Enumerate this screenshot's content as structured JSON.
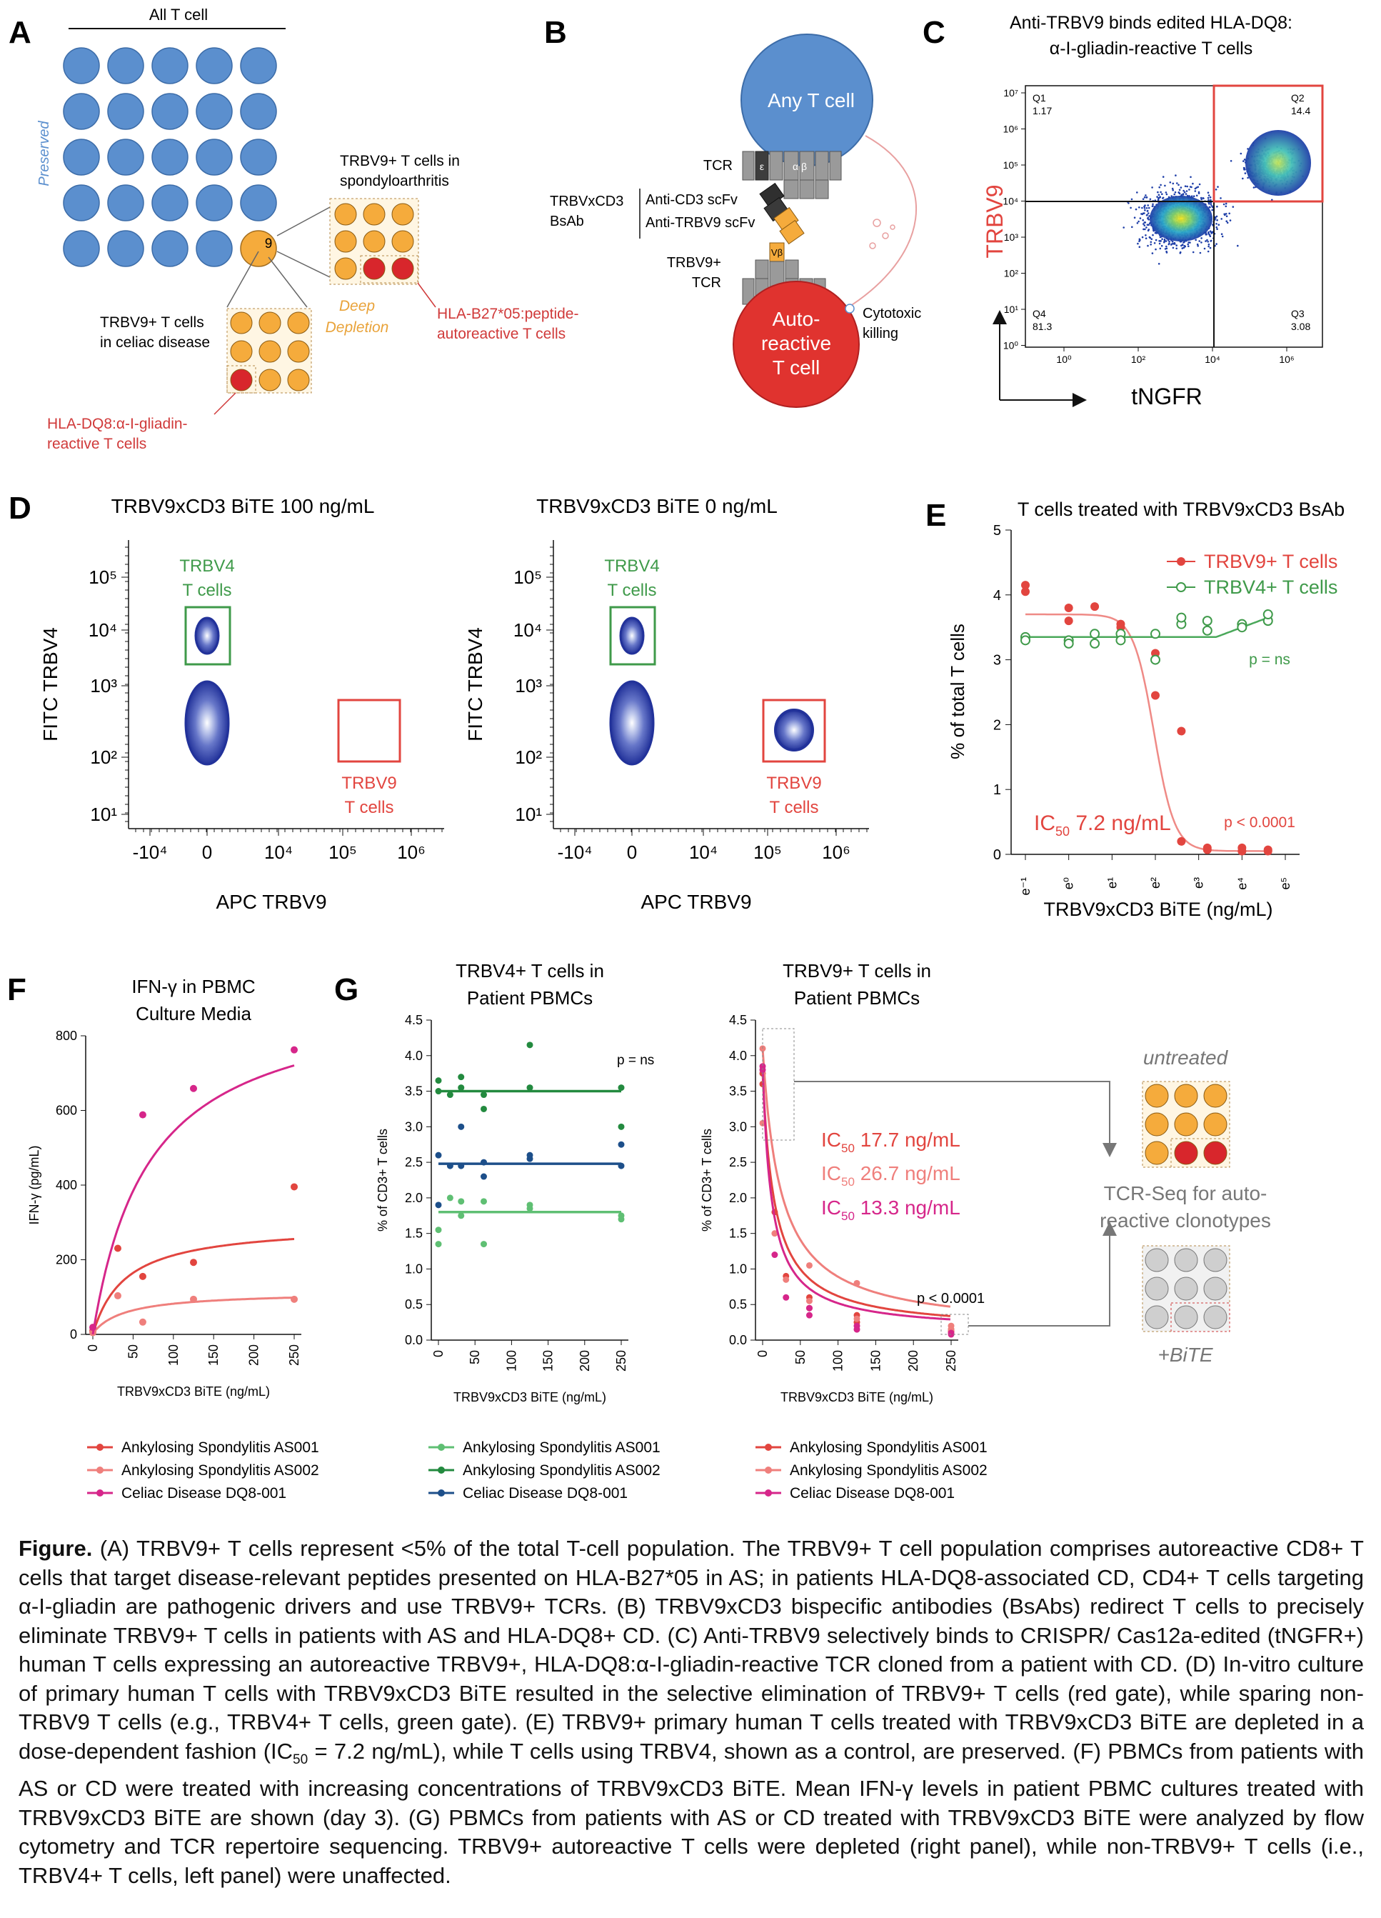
{
  "panels": {
    "A": {
      "letter": "A",
      "title": "All T cell",
      "preserved": "Preserved",
      "nine": "9",
      "as_title_1": "TRBV9+ T cells in",
      "as_title_2": "spondyloarthritis",
      "cd_title_1": "TRBV9+ T cells",
      "cd_title_2": "in celiac disease",
      "deep_1": "Deep",
      "deep_2": "Depletion",
      "hla_b27_1": "HLA-B27*05:peptide-",
      "hla_b27_2": "autoreactive T cells",
      "hla_dq8_1": "HLA-DQ8:α-I-gliadin-",
      "hla_dq8_2": "reactive T cells",
      "colors": {
        "blue": "#5b8fce",
        "orange": "#f5ab3c",
        "red": "#d8262c",
        "red_text": "#d03a3a",
        "orange_text": "#e9a33a"
      }
    },
    "B": {
      "letter": "B",
      "any_t_cell": "Any T cell",
      "tcr": "TCR",
      "eps": "ε",
      "alpha_beta": "α β",
      "bsab_1": "TRBVxCD3",
      "bsab_2": "BsAb",
      "anti_cd3": "Anti-CD3 scFv",
      "anti_trbv9": "Anti-TRBV9 scFv",
      "trbv9_tcr_1": "TRBV9+",
      "trbv9_tcr_2": "TCR",
      "vb": "Vβ",
      "auto_1": "Auto-",
      "auto_2": "reactive",
      "auto_3": "T cell",
      "cytotoxic_1": "Cytotoxic",
      "cytotoxic_2": "killing"
    },
    "C": {
      "letter": "C",
      "title_1": "Anti-TRBV9 binds edited HLA-DQ8:",
      "title_2": "α-I-gliadin-reactive T cells",
      "ylabel": "TRBV9",
      "xlabel": "tNGFR",
      "q1": "Q1",
      "q1_val": "1.17",
      "q2": "Q2",
      "q2_val": "14.4",
      "q3": "Q3",
      "q3_val": "3.08",
      "q4": "Q4",
      "q4_val": "81.3",
      "y_ticks": [
        "10⁷",
        "10⁶",
        "10⁵",
        "10⁴",
        "10³",
        "10²",
        "10¹",
        "10⁰"
      ],
      "x_ticks": [
        "10⁰",
        "10²",
        "10⁴",
        "10⁶"
      ]
    },
    "D": {
      "letter": "D",
      "plot1_title": "TRBV9xCD3 BiTE 100 ng/mL",
      "plot2_title": "TRBV9xCD3 BiTE 0 ng/mL",
      "ylabel": "FITC TRBV4",
      "xlabel": "APC TRBV9",
      "trbv4_gate_1": "TRBV4",
      "trbv4_gate_2": "T cells",
      "trbv9_gate_1": "TRBV9",
      "trbv9_gate_2": "T cells",
      "y_ticks": [
        "10⁵",
        "10⁴",
        "10³",
        "10²",
        "10¹"
      ],
      "x_ticks": [
        "-10⁴",
        "0",
        "10⁴",
        "10⁵",
        "10⁶"
      ]
    },
    "E": {
      "letter": "E",
      "ic50": "IC",
      "ic50_sub": "50",
      "ic50_val": " 7.2 ng/mL",
      "p_ns": "p = ns",
      "p_sig": "p < 0.0001"
    },
    "F": {
      "letter": "F",
      "legend": [
        "Ankylosing Spondylitis AS001",
        "Ankylosing Spondylitis AS002",
        "Celiac Disease DQ8-001"
      ]
    },
    "G": {
      "letter": "G",
      "p_ns": "p = ns",
      "p_sig": "p < 0.0001",
      "ic50_a": " 17.7 ng/mL",
      "ic50_b": " 26.7 ng/mL",
      "ic50_c": " 13.3 ng/mL",
      "ic": "IC",
      "ic_sub": "50",
      "untreated": "untreated",
      "tcr_seq_1": "TCR-Seq for auto-",
      "tcr_seq_2": "reactive clonotypes",
      "bite": "+BiTE",
      "legend_left": [
        "Ankylosing Spondylitis AS001",
        "Ankylosing Spondylitis AS002",
        "Celiac Disease DQ8-001"
      ],
      "legend_right": [
        "Ankylosing Spondylitis AS001",
        "Ankylosing Spondylitis AS002",
        "Celiac Disease DQ8-001"
      ]
    }
  },
  "chart_data": [
    {
      "id": "E",
      "type": "scatter",
      "title": "T cells treated with TRBV9xCD3 BsAb",
      "xlabel": "TRBV9xCD3 BiTE (ng/mL)",
      "ylabel": "% of total T cells",
      "x_scale": "log_e",
      "x_ticks": [
        "e⁻¹",
        "e⁰",
        "e¹",
        "e²",
        "e³",
        "e⁴",
        "e⁵"
      ],
      "ylim": [
        0,
        5
      ],
      "y_ticks": [
        "0",
        "1",
        "2",
        "3",
        "4",
        "5"
      ],
      "series": [
        {
          "name": "TRBV9+ T cells",
          "color": "#e2453f",
          "marker": "filled",
          "points": [
            [
              -1,
              4.15
            ],
            [
              -1,
              4.05
            ],
            [
              0,
              3.8
            ],
            [
              0,
              3.6
            ],
            [
              0.6,
              3.82
            ],
            [
              1.2,
              3.55
            ],
            [
              1.2,
              3.5
            ],
            [
              2,
              3.1
            ],
            [
              2,
              2.45
            ],
            [
              2.6,
              1.9
            ],
            [
              2.6,
              0.2
            ],
            [
              3.2,
              0.07
            ],
            [
              3.2,
              0.1
            ],
            [
              4,
              0.05
            ],
            [
              4,
              0.1
            ],
            [
              4.6,
              0.05
            ],
            [
              4.6,
              0.07
            ]
          ]
        },
        {
          "name": "TRBV4+ T cells",
          "color": "#3f9a4a",
          "marker": "open",
          "points": [
            [
              -1,
              3.35
            ],
            [
              -1,
              3.3
            ],
            [
              0,
              3.3
            ],
            [
              0,
              3.25
            ],
            [
              0.6,
              3.4
            ],
            [
              0.6,
              3.25
            ],
            [
              1.2,
              3.4
            ],
            [
              1.2,
              3.3
            ],
            [
              2,
              3.0
            ],
            [
              2,
              3.4
            ],
            [
              2.6,
              3.55
            ],
            [
              2.6,
              3.65
            ],
            [
              3.2,
              3.45
            ],
            [
              3.2,
              3.6
            ],
            [
              4,
              3.55
            ],
            [
              4,
              3.5
            ],
            [
              4.6,
              3.6
            ],
            [
              4.6,
              3.7
            ]
          ]
        }
      ]
    },
    {
      "id": "F",
      "type": "scatter",
      "title": "IFN-γ in PBMC Culture Media",
      "xlabel": "TRBV9xCD3 BiTE (ng/mL)",
      "ylabel": "IFN-γ (pg/mL)",
      "xlim": [
        0,
        250
      ],
      "ylim": [
        0,
        850
      ],
      "x_ticks": [
        "0",
        "50",
        "100",
        "150",
        "200",
        "250"
      ],
      "y_ticks": [
        "0",
        "200",
        "400",
        "600",
        "800"
      ],
      "series": [
        {
          "name": "Ankylosing Spondylitis AS001",
          "color": "#e2453f",
          "points": [
            [
              0,
              10
            ],
            [
              31,
              245
            ],
            [
              62,
              165
            ],
            [
              125,
              205
            ],
            [
              250,
              420
            ]
          ]
        },
        {
          "name": "Ankylosing Spondylitis AS002",
          "color": "#ef7f7c",
          "points": [
            [
              0,
              5
            ],
            [
              31,
              110
            ],
            [
              62,
              35
            ],
            [
              125,
              100
            ],
            [
              250,
              100
            ]
          ]
        },
        {
          "name": "Celiac Disease DQ8-001",
          "color": "#d6268a",
          "points": [
            [
              0,
              20
            ],
            [
              62,
              625
            ],
            [
              125,
              700
            ],
            [
              250,
              810
            ]
          ]
        }
      ]
    },
    {
      "id": "G-left",
      "type": "scatter",
      "title": "TRBV4+ T cells in Patient PBMCs",
      "xlabel": "TRBV9xCD3 BiTE (ng/mL)",
      "ylabel": "% of CD3+ T cells",
      "xlim": [
        0,
        250
      ],
      "ylim": [
        0,
        4.5
      ],
      "x_ticks": [
        "0",
        "50",
        "100",
        "150",
        "200",
        "250"
      ],
      "y_ticks": [
        "0.0",
        "0.5",
        "1.0",
        "1.5",
        "2.0",
        "2.5",
        "3.0",
        "3.5",
        "4.0",
        "4.5"
      ],
      "series": [
        {
          "name": "Ankylosing Spondylitis AS001",
          "color": "#5fbf73",
          "mean": 1.8,
          "points": [
            [
              0,
              1.55
            ],
            [
              0,
              1.35
            ],
            [
              16,
              2.0
            ],
            [
              31,
              1.75
            ],
            [
              31,
              1.95
            ],
            [
              62,
              1.35
            ],
            [
              62,
              1.95
            ],
            [
              125,
              1.85
            ],
            [
              125,
              1.9
            ],
            [
              250,
              1.7
            ],
            [
              250,
              1.75
            ]
          ]
        },
        {
          "name": "Ankylosing Spondylitis AS002",
          "color": "#238a3f",
          "mean": 3.5,
          "points": [
            [
              0,
              3.65
            ],
            [
              0,
              3.5
            ],
            [
              16,
              3.45
            ],
            [
              31,
              3.7
            ],
            [
              31,
              3.55
            ],
            [
              62,
              3.25
            ],
            [
              62,
              3.45
            ],
            [
              125,
              4.15
            ],
            [
              125,
              3.55
            ],
            [
              250,
              3.55
            ],
            [
              250,
              3.0
            ]
          ]
        },
        {
          "name": "Celiac Disease DQ8-001",
          "color": "#1d4f8a",
          "mean": 2.48,
          "points": [
            [
              0,
              2.6
            ],
            [
              0,
              1.9
            ],
            [
              16,
              2.45
            ],
            [
              31,
              3.0
            ],
            [
              31,
              2.45
            ],
            [
              62,
              2.5
            ],
            [
              62,
              2.3
            ],
            [
              125,
              2.55
            ],
            [
              125,
              2.6
            ],
            [
              250,
              2.75
            ],
            [
              250,
              2.45
            ]
          ]
        }
      ]
    },
    {
      "id": "G-right",
      "type": "scatter",
      "title": "TRBV9+ T cells in Patient PBMCs",
      "xlabel": "TRBV9xCD3 BiTE (ng/mL)",
      "ylabel": "% of CD3+ T cells",
      "xlim": [
        0,
        250
      ],
      "ylim": [
        0,
        4.5
      ],
      "x_ticks": [
        "0",
        "50",
        "100",
        "150",
        "200",
        "250"
      ],
      "y_ticks": [
        "0.0",
        "0.5",
        "1.0",
        "1.5",
        "2.0",
        "2.5",
        "3.0",
        "3.5",
        "4.0",
        "4.5"
      ],
      "series": [
        {
          "name": "Ankylosing Spondylitis AS001",
          "color": "#e2453f",
          "ic50": 17.7,
          "points": [
            [
              0,
              3.75
            ],
            [
              0,
              3.6
            ],
            [
              16,
              1.8
            ],
            [
              31,
              0.9
            ],
            [
              62,
              0.6
            ],
            [
              62,
              0.45
            ],
            [
              125,
              0.35
            ],
            [
              125,
              0.25
            ],
            [
              250,
              0.15
            ],
            [
              250,
              0.12
            ]
          ]
        },
        {
          "name": "Ankylosing Spondylitis AS002",
          "color": "#ef7f7c",
          "ic50": 26.7,
          "points": [
            [
              0,
              4.1
            ],
            [
              0,
              3.05
            ],
            [
              16,
              1.5
            ],
            [
              31,
              0.85
            ],
            [
              62,
              1.05
            ],
            [
              62,
              0.55
            ],
            [
              125,
              0.8
            ],
            [
              125,
              0.3
            ],
            [
              250,
              0.2
            ],
            [
              250,
              0.15
            ]
          ]
        },
        {
          "name": "Celiac Disease DQ8-001",
          "color": "#d6268a",
          "ic50": 13.3,
          "points": [
            [
              0,
              3.85
            ],
            [
              0,
              3.8
            ],
            [
              16,
              1.2
            ],
            [
              31,
              0.6
            ],
            [
              62,
              0.45
            ],
            [
              62,
              0.35
            ],
            [
              125,
              0.2
            ],
            [
              125,
              0.15
            ],
            [
              250,
              0.1
            ],
            [
              250,
              0.08
            ]
          ]
        }
      ]
    }
  ],
  "caption": {
    "lead": "Figure.",
    "body": " (A) TRBV9+ T cells represent <5% of the total T-cell population. The TRBV9+ T cell population comprises autoreactive CD8+ T cells that target disease-relevant peptides presented on HLA-B27*05 in AS; in patients HLA-DQ8-associated CD, CD4+ T cells targeting α-I-gliadin are pathogenic drivers and use TRBV9+ TCRs. (B) TRBV9xCD3 bispecific antibodies (BsAbs) redirect T cells to precisely eliminate TRBV9+ T cells in patients with AS and HLA-DQ8+ CD. (C) Anti-TRBV9 selectively binds to CRISPR/ Cas12a-edited (tNGFR+) human T cells expressing an autoreactive TRBV9+, HLA-DQ8:α-I-gliadin-reactive TCR cloned from a patient with CD. (D) In-vitro culture of primary human T cells with TRBV9xCD3 BiTE resulted in the selective elimination of TRBV9+ T cells (red gate), while sparing non-TRBV9 T cells (e.g., TRBV4+ T cells, green gate). (E) TRBV9+ primary human T cells treated with TRBV9xCD3 BiTE are depleted in a dose-dependent fashion (IC",
    "sub": "50",
    "body2": " = 7.2 ng/mL), while T cells using TRBV4, shown as a control, are preserved. (F) PBMCs from patients with AS or CD were treated with increasing concentrations of TRBV9xCD3 BiTE. Mean IFN-γ levels in patient PBMC cultures treated with TRBV9xCD3 BiTE are shown (day 3). (G) PBMCs from patients with AS or CD treated with TRBV9xCD3 BiTE were analyzed by flow cytometry and TCR repertoire sequencing. TRBV9+ autoreactive T cells were depleted (right panel), while non-TRBV9+ T cells (i.e., TRBV4+ T cells, left panel) were unaffected."
  }
}
